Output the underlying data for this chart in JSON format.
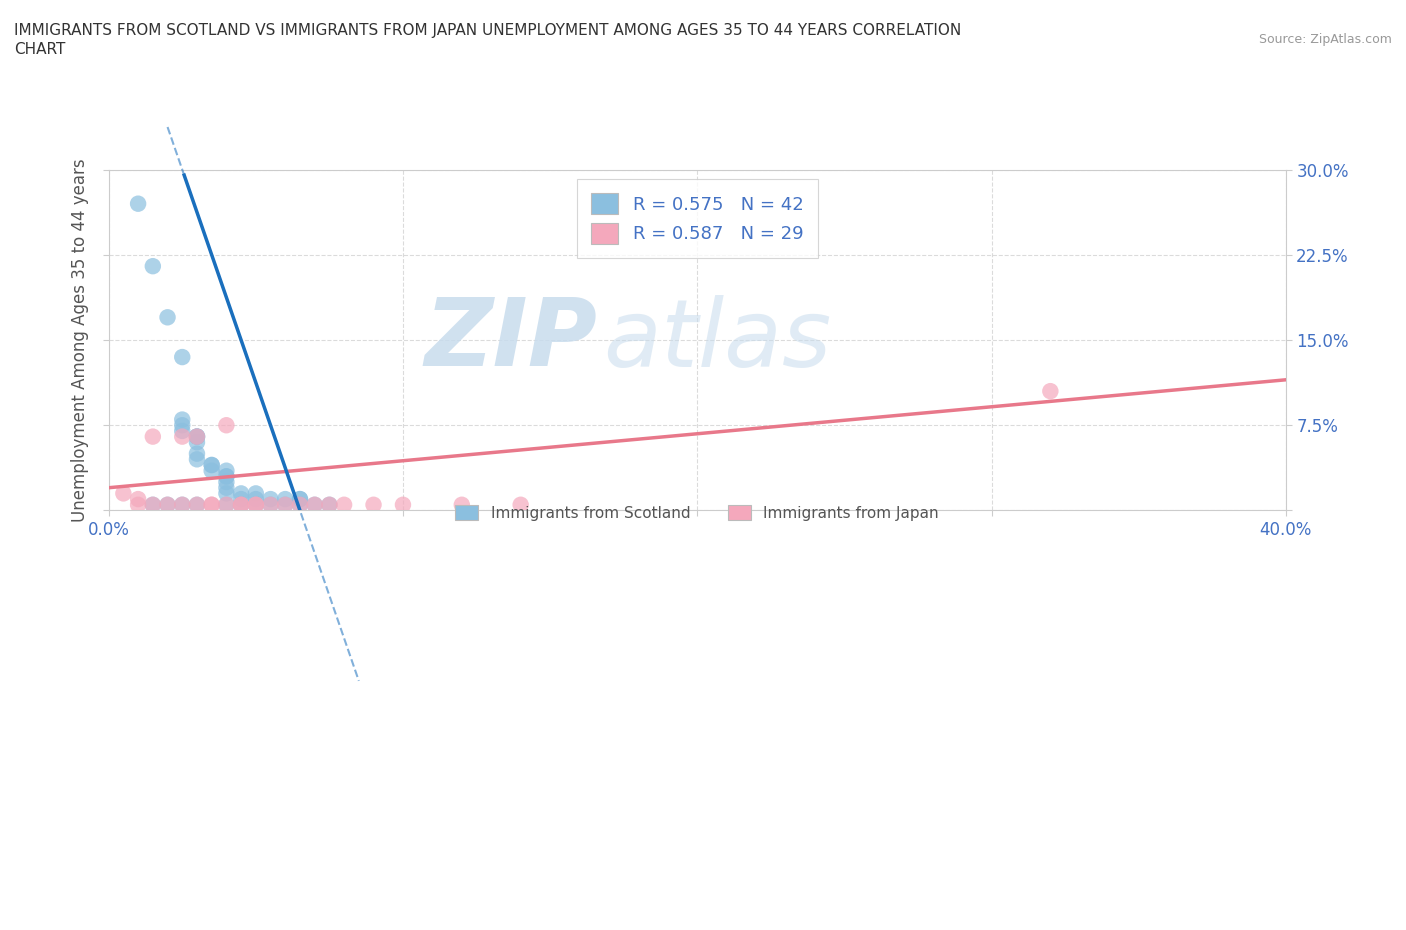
{
  "title_line1": "IMMIGRANTS FROM SCOTLAND VS IMMIGRANTS FROM JAPAN UNEMPLOYMENT AMONG AGES 35 TO 44 YEARS CORRELATION",
  "title_line2": "CHART",
  "source_text": "Source: ZipAtlas.com",
  "ylabel": "Unemployment Among Ages 35 to 44 years",
  "xlim": [
    0.0,
    0.4
  ],
  "ylim": [
    0.0,
    0.3
  ],
  "scotland_color": "#8bbfdf",
  "japan_color": "#f4a8bc",
  "scotland_line_color": "#1a6fbd",
  "japan_line_color": "#e8788a",
  "scotland_R": 0.575,
  "scotland_N": 42,
  "japan_R": 0.587,
  "japan_N": 29,
  "watermark_zip": "ZIP",
  "watermark_atlas": "atlas",
  "legend_label_1": "Immigrants from Scotland",
  "legend_label_2": "Immigrants from Japan",
  "scotland_scatter_x": [
    0.01,
    0.015,
    0.02,
    0.025,
    0.025,
    0.025,
    0.025,
    0.03,
    0.03,
    0.03,
    0.03,
    0.03,
    0.03,
    0.035,
    0.035,
    0.035,
    0.04,
    0.04,
    0.04,
    0.04,
    0.04,
    0.04,
    0.045,
    0.045,
    0.045,
    0.05,
    0.05,
    0.05,
    0.055,
    0.055,
    0.06,
    0.06,
    0.065,
    0.065,
    0.065,
    0.07,
    0.075,
    0.015,
    0.02,
    0.025,
    0.03,
    0.04
  ],
  "scotland_scatter_y": [
    0.27,
    0.215,
    0.17,
    0.135,
    0.08,
    0.075,
    0.07,
    0.065,
    0.065,
    0.065,
    0.06,
    0.05,
    0.045,
    0.04,
    0.04,
    0.035,
    0.035,
    0.03,
    0.03,
    0.025,
    0.02,
    0.015,
    0.015,
    0.01,
    0.005,
    0.015,
    0.01,
    0.005,
    0.01,
    0.005,
    0.01,
    0.005,
    0.01,
    0.01,
    0.005,
    0.005,
    0.005,
    0.005,
    0.005,
    0.005,
    0.005,
    0.005
  ],
  "japan_scatter_x": [
    0.005,
    0.01,
    0.01,
    0.015,
    0.015,
    0.02,
    0.025,
    0.025,
    0.03,
    0.03,
    0.035,
    0.035,
    0.04,
    0.04,
    0.045,
    0.045,
    0.05,
    0.05,
    0.055,
    0.06,
    0.065,
    0.07,
    0.075,
    0.08,
    0.09,
    0.1,
    0.12,
    0.14,
    0.32
  ],
  "japan_scatter_y": [
    0.015,
    0.01,
    0.005,
    0.065,
    0.005,
    0.005,
    0.065,
    0.005,
    0.065,
    0.005,
    0.005,
    0.005,
    0.075,
    0.005,
    0.005,
    0.005,
    0.005,
    0.005,
    0.005,
    0.005,
    0.005,
    0.005,
    0.005,
    0.005,
    0.005,
    0.005,
    0.005,
    0.005,
    0.105
  ],
  "scotland_line_x1": 0.065,
  "scotland_line_y1": 0.0,
  "scotland_line_x2": 0.025,
  "scotland_line_y2": 0.3,
  "japan_line_x1": 0.0,
  "japan_line_y1": 0.02,
  "japan_line_x2": 0.4,
  "japan_line_y2": 0.115
}
